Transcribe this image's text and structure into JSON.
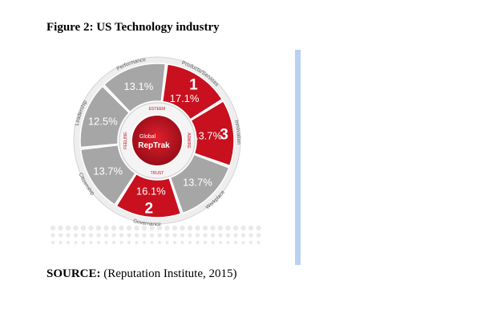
{
  "figure": {
    "title": "Figure 2: US Technology industry"
  },
  "chart_data": {
    "type": "pie",
    "title": "",
    "center_label": {
      "line1": "Global",
      "line2": "RepTrak"
    },
    "inner_ring_labels": [
      "ESTEEM",
      "ADMIRE",
      "TRUST",
      "FEELING"
    ],
    "segments": [
      {
        "name": "Products/Services",
        "value": 17.1,
        "label": "17.1%",
        "rank": "1",
        "highlighted": true
      },
      {
        "name": "Innovation",
        "value": 13.7,
        "label": "13.7%",
        "rank": "3",
        "highlighted": true
      },
      {
        "name": "Workplace",
        "value": 13.7,
        "label": "13.7%",
        "rank": "",
        "highlighted": false
      },
      {
        "name": "Governance",
        "value": 16.1,
        "label": "16.1%",
        "rank": "2",
        "highlighted": true
      },
      {
        "name": "Citizenship",
        "value": 13.7,
        "label": "13.7%",
        "rank": "",
        "highlighted": false
      },
      {
        "name": "Leadership",
        "value": 12.5,
        "label": "12.5%",
        "rank": "",
        "highlighted": false
      },
      {
        "name": "Performance",
        "value": 13.1,
        "label": "13.1%",
        "rank": "",
        "highlighted": false
      }
    ],
    "colors": {
      "highlight": "#c8101e",
      "normal": "#a6a6a6",
      "ring": "#f2f2f2"
    }
  },
  "source": {
    "label": "SOURCE:",
    "text": " (Reputation Institute, 2015)"
  }
}
